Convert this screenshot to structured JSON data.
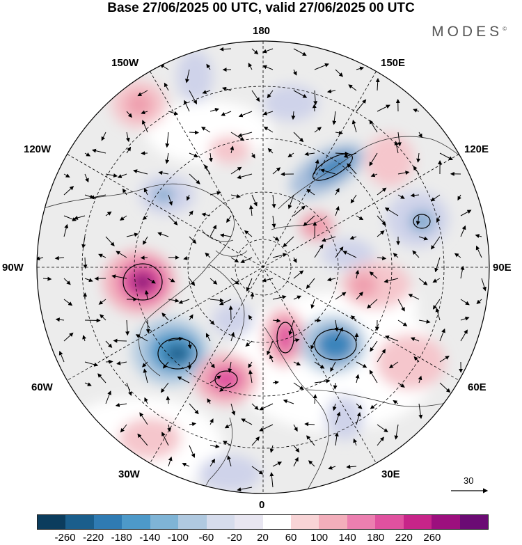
{
  "title": "Base 27/06/2025 00 UTC, valid 27/06/2025 00 UTC",
  "brand": "MODES",
  "brand_mark": "©",
  "longitude_labels": {
    "lon_180": "180",
    "lon_150E": "150E",
    "lon_120E": "120E",
    "lon_90E": "90E",
    "lon_60E": "60E",
    "lon_30E": "30E",
    "lon_0": "0",
    "lon_30W": "30W",
    "lon_60W": "60W",
    "lon_90W": "90W",
    "lon_120W": "120W",
    "lon_150W": "150W"
  },
  "reference_vector": {
    "value": "30"
  },
  "colorbar": {
    "colors": [
      "#0b3c5d",
      "#1a5e8c",
      "#2f7bb3",
      "#4d99c9",
      "#7fb4d6",
      "#b0c9e0",
      "#d6dcec",
      "#e8e6f1",
      "#ffffff",
      "#f8d4d6",
      "#f3aebb",
      "#ec7fb0",
      "#e0519f",
      "#c72489",
      "#9c0f7e",
      "#6b0b74"
    ],
    "ticks": [
      "-260",
      "-220",
      "-180",
      "-140",
      "-100",
      "-60",
      "-20",
      "20",
      "60",
      "100",
      "140",
      "180",
      "220",
      "260"
    ]
  }
}
